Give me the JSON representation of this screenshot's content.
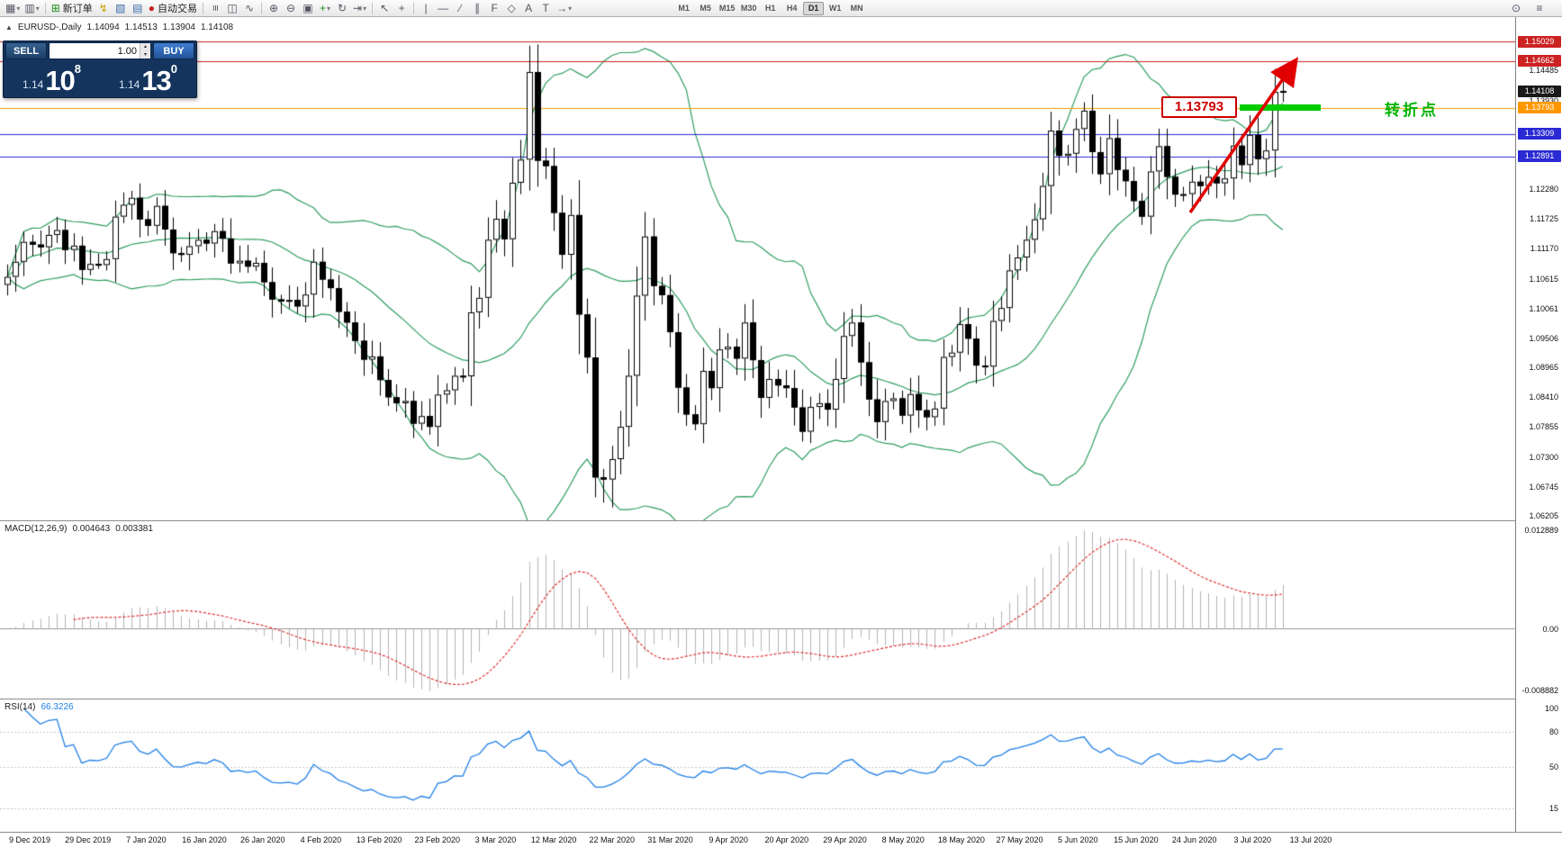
{
  "icons": {
    "collapse": "▲",
    "new_chart": "▦",
    "profiles": "▥",
    "dropdown": "▾",
    "new_order": "⊞",
    "expert_advisors": "↯",
    "strategy_tester": "▧",
    "market_watch": "▤",
    "auto_trading": "●",
    "bar_chart": "≡",
    "candle_chart": "◫",
    "line_chart": "∿",
    "zoom_in": "⊕",
    "zoom_out": "⊖",
    "tile_windows": "▣",
    "indicators_add": "+",
    "auto_scroll": "↻",
    "chart_shift": "⇥",
    "cursor": "↖",
    "crosshair": "+",
    "vertical_line": "|",
    "horizontal_line": "—",
    "trendline": "∕",
    "channel": "∥",
    "fibonacci": "F",
    "shapes": "◇",
    "text": "A",
    "label": "T",
    "arrows_tool": "→",
    "search": "⊙",
    "menu": "≡",
    "step_up": "▴",
    "step_down": "▾"
  },
  "toolbar": {
    "new_order_label": "新订单",
    "auto_trading_label": "自动交易",
    "timeframes": [
      "M1",
      "M5",
      "M15",
      "M30",
      "H1",
      "H4",
      "D1",
      "W1",
      "MN"
    ],
    "active_timeframe": "D1"
  },
  "header": {
    "symbol_period": "EURUSD-,Daily",
    "open": "1.14094",
    "high": "1.14513",
    "low": "1.13904",
    "close": "1.14108"
  },
  "trade_panel": {
    "sell_label": "SELL",
    "buy_label": "BUY",
    "lot_value": "1.00",
    "sell_price_small": "1.14",
    "sell_price_big": "10",
    "sell_price_sup": "8",
    "buy_price_small": "1.14",
    "buy_price_big": "13",
    "buy_price_sup": "0"
  },
  "annotations": {
    "level_label": "1.13793",
    "turning_point": "转折点"
  },
  "macd": {
    "name": "MACD(12,26,9)",
    "value_main": "0.004643",
    "value_signal": "0.003381",
    "axis_top": "0.012889",
    "axis_zero": "0.00",
    "axis_bottom": "-0.008882"
  },
  "rsi": {
    "name": "RSI(14)",
    "value": "66.3226",
    "axis": [
      100,
      80,
      50,
      15
    ]
  },
  "chart_data": {
    "type": "candlestick",
    "title": "EURUSD-,Daily",
    "price_extent": [
      1.06205,
      1.15029
    ],
    "current_price": "1.14108",
    "price_ticks": [
      "1.14485",
      "1.13930",
      "1.12280",
      "1.11725",
      "1.11170",
      "1.10615",
      "1.10061",
      "1.09506",
      "1.08965",
      "1.08410",
      "1.07855",
      "1.07300",
      "1.06745",
      "1.06205"
    ],
    "x_labels": [
      "9 Dec 2019",
      "29 Dec 2019",
      "7 Jan 2020",
      "16 Jan 2020",
      "26 Jan 2020",
      "4 Feb 2020",
      "13 Feb 2020",
      "23 Feb 2020",
      "3 Mar 2020",
      "12 Mar 2020",
      "22 Mar 2020",
      "31 Mar 2020",
      "9 Apr 2020",
      "20 Apr 2020",
      "29 Apr 2020",
      "8 May 2020",
      "18 May 2020",
      "27 May 2020",
      "5 Jun 2020",
      "15 Jun 2020",
      "24 Jun 2020",
      "3 Jul 2020",
      "13 Jul 2020"
    ],
    "hlines": [
      {
        "price": 1.15029,
        "label": "1.15029",
        "color": "#cc2222",
        "tag_bg": "#cc2222"
      },
      {
        "price": 1.14662,
        "label": "1.14662",
        "color": "#cc2222",
        "tag_bg": "#cc2222"
      },
      {
        "price": 1.13793,
        "label": "1.13793",
        "color": "#ffa000",
        "tag_bg": "#ff9800"
      },
      {
        "price": 1.13309,
        "label": "1.13309",
        "color": "#2a2ad4",
        "tag_bg": "#2a2ad4"
      },
      {
        "price": 1.12891,
        "label": "1.12891",
        "color": "#2a2ad4",
        "tag_bg": "#2a2ad4"
      }
    ],
    "indicators": {
      "bollinger_period": 20,
      "bollinger_dev": 2,
      "macd": [
        12,
        26,
        9
      ],
      "rsi_period": 14,
      "rsi_levels": [
        80,
        50,
        15
      ]
    },
    "closes": [
      1.1065,
      1.1093,
      1.113,
      1.1125,
      1.112,
      1.1143,
      1.1152,
      1.1115,
      1.1123,
      1.1078,
      1.1089,
      1.1087,
      1.1098,
      1.1177,
      1.1199,
      1.1212,
      1.1172,
      1.116,
      1.1197,
      1.1153,
      1.1109,
      1.1106,
      1.1122,
      1.1134,
      1.1127,
      1.115,
      1.1136,
      1.109,
      1.1095,
      1.1084,
      1.1091,
      1.1055,
      1.1023,
      1.1019,
      1.1022,
      1.101,
      1.1032,
      1.1093,
      1.106,
      1.1044,
      1.1,
      1.098,
      1.0946,
      1.0911,
      1.0917,
      1.0873,
      1.0841,
      1.083,
      1.0834,
      1.0792,
      1.0806,
      1.0786,
      1.0846,
      1.0854,
      1.0881,
      1.088,
      1.0999,
      1.1026,
      1.1134,
      1.1173,
      1.1135,
      1.124,
      1.1283,
      1.1446,
      1.1281,
      1.1271,
      1.1184,
      1.1106,
      1.118,
      1.0995,
      1.0915,
      1.0692,
      1.0688,
      1.0726,
      1.0786,
      1.0881,
      1.103,
      1.114,
      1.1048,
      1.1031,
      1.0962,
      1.0859,
      1.0809,
      1.0791,
      1.089,
      1.0858,
      1.093,
      1.0935,
      1.0913,
      1.098,
      1.091,
      1.084,
      1.0875,
      1.0863,
      1.0858,
      1.0822,
      1.0777,
      1.0823,
      1.083,
      1.0818,
      1.0875,
      1.0955,
      1.098,
      1.0906,
      1.0837,
      1.0795,
      1.0834,
      1.0839,
      1.0807,
      1.0847,
      1.0817,
      1.0804,
      1.082,
      1.0916,
      1.0924,
      1.0977,
      1.095,
      1.09,
      1.0898,
      1.0983,
      1.1007,
      1.1077,
      1.1101,
      1.1134,
      1.1172,
      1.1234,
      1.1337,
      1.129,
      1.1294,
      1.134,
      1.1374,
      1.1297,
      1.1256,
      1.1323,
      1.1264,
      1.1243,
      1.1206,
      1.1177,
      1.1261,
      1.1308,
      1.1251,
      1.1218,
      1.1219,
      1.1242,
      1.1234,
      1.1251,
      1.1239,
      1.1248,
      1.1309,
      1.1273,
      1.1329,
      1.1284,
      1.13,
      1.1409,
      1.14108
    ],
    "wick_overrides": {
      "63": {
        "high": 1.1495
      },
      "71": {
        "low": 1.0655
      },
      "72": {
        "low": 1.0645
      },
      "73": {
        "low": 1.0636
      },
      "153": {
        "high": 1.1452
      },
      "154": {
        "open": 1.14094,
        "high": 1.14513,
        "low": 1.13904
      }
    },
    "colors": {
      "band": "#2f9e60",
      "bar_up": "#ffffff",
      "bar_down": "#000000",
      "bar_border": "#000000",
      "macd_hist": "#b4b4b4",
      "macd_signal": "#e03030",
      "rsi_line": "#1f7fe8",
      "arrow": "#e00000",
      "segment": "#00cc00"
    }
  }
}
